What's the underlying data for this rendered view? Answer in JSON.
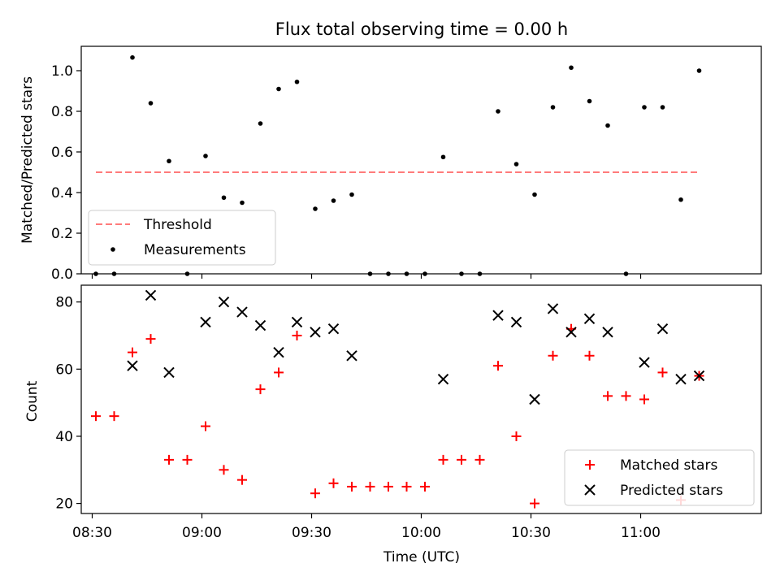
{
  "chart_data": [
    {
      "type": "scatter",
      "title": "Flux total observing time = 0.00 h",
      "xlabel": "",
      "ylabel": "Matched/Predicted stars",
      "xlim": [
        "08:27",
        "11:33"
      ],
      "ylim": [
        0,
        1.12
      ],
      "yticks": [
        "0.0",
        "0.2",
        "0.4",
        "0.6",
        "0.8",
        "1.0"
      ],
      "legend_location": "lower-left",
      "threshold": {
        "name": "Threshold",
        "value": 0.5,
        "x_from": "08:31",
        "x_to": "11:16",
        "color": "#ff7b7b",
        "style": "dashed"
      },
      "series": [
        {
          "name": "Measurements",
          "color": "#000000",
          "marker": "dot",
          "points": [
            [
              "08:31",
              0.0
            ],
            [
              "08:36",
              0.0
            ],
            [
              "08:41",
              1.065
            ],
            [
              "08:46",
              0.84
            ],
            [
              "08:51",
              0.555
            ],
            [
              "08:56",
              0.0
            ],
            [
              "09:01",
              0.58
            ],
            [
              "09:06",
              0.375
            ],
            [
              "09:11",
              0.35
            ],
            [
              "09:16",
              0.74
            ],
            [
              "09:21",
              0.91
            ],
            [
              "09:26",
              0.945
            ],
            [
              "09:31",
              0.32
            ],
            [
              "09:36",
              0.36
            ],
            [
              "09:41",
              0.39
            ],
            [
              "09:46",
              0.0
            ],
            [
              "09:51",
              0.0
            ],
            [
              "09:56",
              0.0
            ],
            [
              "10:01",
              0.0
            ],
            [
              "10:06",
              0.575
            ],
            [
              "10:11",
              0.0
            ],
            [
              "10:16",
              0.0
            ],
            [
              "10:21",
              0.8
            ],
            [
              "10:26",
              0.54
            ],
            [
              "10:31",
              0.39
            ],
            [
              "10:36",
              0.82
            ],
            [
              "10:41",
              1.015
            ],
            [
              "10:46",
              0.85
            ],
            [
              "10:51",
              0.73
            ],
            [
              "10:56",
              0.0
            ],
            [
              "11:01",
              0.82
            ],
            [
              "11:06",
              0.82
            ],
            [
              "11:11",
              0.365
            ],
            [
              "11:16",
              1.0
            ]
          ]
        }
      ]
    },
    {
      "type": "scatter",
      "title": "",
      "xlabel": "Time (UTC)",
      "ylabel": "Count",
      "xlim": [
        "08:27",
        "11:33"
      ],
      "ylim": [
        17,
        85
      ],
      "xticks": [
        "08:30",
        "09:00",
        "09:30",
        "10:00",
        "10:30",
        "11:00"
      ],
      "yticks": [
        "20",
        "40",
        "60",
        "80"
      ],
      "legend_location": "lower-right",
      "series": [
        {
          "name": "Matched stars",
          "color": "#ff0000",
          "marker": "plus",
          "points": [
            [
              "08:31",
              46
            ],
            [
              "08:36",
              46
            ],
            [
              "08:41",
              65
            ],
            [
              "08:46",
              69
            ],
            [
              "08:51",
              33
            ],
            [
              "08:56",
              33
            ],
            [
              "09:01",
              43
            ],
            [
              "09:06",
              30
            ],
            [
              "09:11",
              27
            ],
            [
              "09:16",
              54
            ],
            [
              "09:21",
              59
            ],
            [
              "09:26",
              70
            ],
            [
              "09:31",
              23
            ],
            [
              "09:36",
              26
            ],
            [
              "09:41",
              25
            ],
            [
              "09:46",
              25
            ],
            [
              "09:51",
              25
            ],
            [
              "09:56",
              25
            ],
            [
              "10:01",
              25
            ],
            [
              "10:06",
              33
            ],
            [
              "10:11",
              33
            ],
            [
              "10:16",
              33
            ],
            [
              "10:21",
              61
            ],
            [
              "10:26",
              40
            ],
            [
              "10:31",
              20
            ],
            [
              "10:36",
              64
            ],
            [
              "10:41",
              72
            ],
            [
              "10:46",
              64
            ],
            [
              "10:51",
              52
            ],
            [
              "10:56",
              52
            ],
            [
              "11:01",
              51
            ],
            [
              "11:06",
              59
            ],
            [
              "11:11",
              21
            ],
            [
              "11:16",
              58
            ]
          ]
        },
        {
          "name": "Predicted stars",
          "color": "#000000",
          "marker": "x",
          "points": [
            [
              "08:41",
              61
            ],
            [
              "08:46",
              82
            ],
            [
              "08:51",
              59
            ],
            [
              "09:01",
              74
            ],
            [
              "09:06",
              80
            ],
            [
              "09:11",
              77
            ],
            [
              "09:16",
              73
            ],
            [
              "09:21",
              65
            ],
            [
              "09:26",
              74
            ],
            [
              "09:31",
              71
            ],
            [
              "09:36",
              72
            ],
            [
              "09:41",
              64
            ],
            [
              "10:06",
              57
            ],
            [
              "10:21",
              76
            ],
            [
              "10:26",
              74
            ],
            [
              "10:31",
              51
            ],
            [
              "10:36",
              78
            ],
            [
              "10:41",
              71
            ],
            [
              "10:46",
              75
            ],
            [
              "10:51",
              71
            ],
            [
              "11:01",
              62
            ],
            [
              "11:06",
              72
            ],
            [
              "11:11",
              57
            ],
            [
              "11:16",
              58
            ]
          ]
        }
      ]
    }
  ]
}
